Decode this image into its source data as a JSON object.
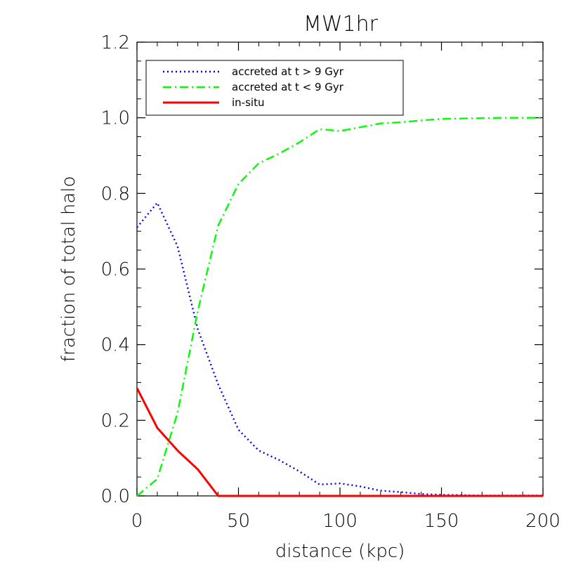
{
  "chart_data": {
    "type": "line",
    "title": "MW1hr",
    "xlabel": "distance (kpc)",
    "ylabel": "fraction of total halo",
    "xlim": [
      0,
      200
    ],
    "ylim": [
      0,
      1.2
    ],
    "x_ticks": [
      0,
      50,
      100,
      150,
      200
    ],
    "x_tick_labels": [
      "0",
      "50",
      "100",
      "150",
      "200"
    ],
    "y_ticks": [
      0,
      0.2,
      0.4,
      0.6,
      0.8,
      1.0,
      1.2
    ],
    "y_tick_labels": [
      "0.0",
      "0.2",
      "0.4",
      "0.6",
      "0.8",
      "1.0",
      "1.2"
    ],
    "grid": false,
    "legend_position": "top-left",
    "series": [
      {
        "name": "accreted at t > 9 Gyr",
        "color": "#0000ff",
        "line_style": "dotted",
        "x": [
          0,
          10,
          20,
          30,
          40,
          50,
          60,
          70,
          80,
          90,
          100,
          110,
          120,
          130,
          140,
          150,
          160,
          170,
          180,
          190,
          200
        ],
        "y": [
          0.71,
          0.775,
          0.66,
          0.44,
          0.295,
          0.175,
          0.12,
          0.095,
          0.065,
          0.03,
          0.033,
          0.025,
          0.014,
          0.01,
          0.005,
          0.003,
          0.002,
          0.001,
          0.001,
          0.001,
          0.001
        ]
      },
      {
        "name": "accreted at t < 9 Gyr",
        "color": "#00ff00",
        "line_style": "dash-dot",
        "x": [
          0,
          10,
          20,
          30,
          40,
          50,
          60,
          70,
          80,
          90,
          100,
          110,
          120,
          130,
          140,
          150,
          160,
          170,
          180,
          190,
          200
        ],
        "y": [
          0.0,
          0.045,
          0.22,
          0.49,
          0.715,
          0.825,
          0.88,
          0.905,
          0.935,
          0.97,
          0.965,
          0.975,
          0.985,
          0.988,
          0.993,
          0.997,
          0.998,
          0.999,
          1.0,
          1.0,
          1.0
        ]
      },
      {
        "name": "in-situ",
        "color": "#ff0000",
        "line_style": "solid",
        "x": [
          0,
          10,
          20,
          30,
          40,
          50,
          100,
          150,
          200
        ],
        "y": [
          0.285,
          0.18,
          0.12,
          0.07,
          0.0,
          0.0,
          0.0,
          0.0,
          0.0
        ]
      }
    ]
  }
}
